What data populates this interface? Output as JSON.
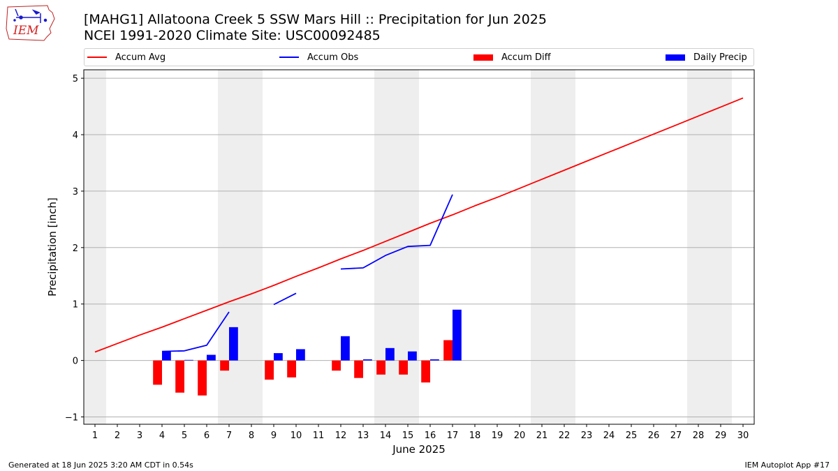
{
  "logo": {
    "text": "IEM"
  },
  "title": {
    "line1": "[MAHG1] Allatoona Creek 5 SSW Mars Hill :: Precipitation for Jun 2025",
    "line2": "NCEI 1991-2020 Climate Site: USC00092485"
  },
  "footer": {
    "left": "Generated at 18 Jun 2025 3:20 AM CDT in 0.54s",
    "right": "IEM Autoplot App #17"
  },
  "chart_data": {
    "type": "bar",
    "xlabel": "June 2025",
    "ylabel": "Precipitation [inch]",
    "xlim": [
      0.5,
      30.5
    ],
    "ylim": [
      -1.13,
      5.15
    ],
    "x_ticks": [
      1,
      2,
      3,
      4,
      5,
      6,
      7,
      8,
      9,
      10,
      11,
      12,
      13,
      14,
      15,
      16,
      17,
      18,
      19,
      20,
      21,
      22,
      23,
      24,
      25,
      26,
      27,
      28,
      29,
      30
    ],
    "y_ticks": [
      -1,
      0,
      1,
      2,
      3,
      4,
      5
    ],
    "grid": "horizontal",
    "weekend_shading_days": [
      1,
      7,
      8,
      14,
      15,
      21,
      22,
      28,
      29
    ],
    "colors": {
      "accum_avg": "#ff0000",
      "accum_obs": "#0000ff",
      "accum_diff": "#ff0000",
      "daily_precip": "#0000ff",
      "weekend": "#eeeeee",
      "grid": "#b0b0b0"
    },
    "legend": {
      "position": "top",
      "entries": [
        "Accum Avg",
        "Accum Obs",
        "Accum Diff",
        "Daily Precip"
      ]
    },
    "series": [
      {
        "name": "Accum Avg",
        "kind": "line",
        "x": [
          1,
          2,
          3,
          4,
          5,
          6,
          7,
          8,
          9,
          10,
          11,
          12,
          13,
          14,
          15,
          16,
          17,
          18,
          19,
          20,
          21,
          22,
          23,
          24,
          25,
          26,
          27,
          28,
          29,
          30
        ],
        "values": [
          0.15,
          0.3,
          0.45,
          0.59,
          0.74,
          0.89,
          1.04,
          1.18,
          1.33,
          1.49,
          1.64,
          1.8,
          1.95,
          2.11,
          2.27,
          2.43,
          2.58,
          2.74,
          2.89,
          3.05,
          3.21,
          3.37,
          3.53,
          3.69,
          3.85,
          4.01,
          4.17,
          4.33,
          4.49,
          4.65
        ]
      },
      {
        "name": "Accum Obs",
        "kind": "line",
        "x": [
          1,
          2,
          3,
          4,
          5,
          6,
          7,
          8,
          9,
          10,
          11,
          12,
          13,
          14,
          15,
          16,
          17
        ],
        "values": [
          null,
          null,
          null,
          0.16,
          0.17,
          0.27,
          0.86,
          null,
          0.99,
          1.19,
          null,
          1.62,
          1.64,
          1.86,
          2.02,
          2.04,
          2.94
        ]
      },
      {
        "name": "Accum Diff",
        "kind": "bar",
        "x": [
          4,
          5,
          6,
          7,
          9,
          10,
          12,
          13,
          14,
          15,
          16,
          17
        ],
        "values": [
          -0.43,
          -0.57,
          -0.62,
          -0.18,
          -0.34,
          -0.3,
          -0.18,
          -0.31,
          -0.25,
          -0.25,
          -0.39,
          0.36
        ]
      },
      {
        "name": "Daily Precip",
        "kind": "bar",
        "x": [
          4,
          5,
          6,
          7,
          9,
          10,
          12,
          13,
          14,
          15,
          16,
          17
        ],
        "values": [
          0.16,
          0.01,
          0.1,
          0.59,
          0.13,
          0.2,
          0.43,
          0.02,
          0.22,
          0.16,
          0.02,
          0.9
        ]
      }
    ]
  }
}
